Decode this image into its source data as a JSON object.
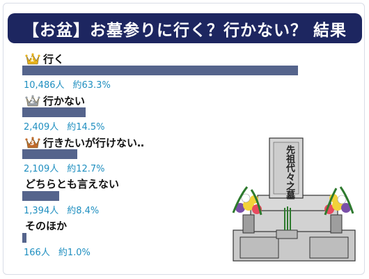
{
  "title": "【お盆】お墓参りに行く？行かない？ 結果",
  "colors": {
    "title_bg": "#1d2660",
    "bar": "#55648c",
    "value_text": "#1f8fc0",
    "gold": "#e7b21c",
    "silver": "#9aa0a6",
    "bronze": "#c06a2a"
  },
  "chart_data": {
    "type": "bar",
    "orientation": "horizontal",
    "title": "【お盆】お墓参りに行く？行かない？ 結果",
    "categories": [
      "行く",
      "行かない",
      "行きたいが行けない‥",
      "どちらとも言えない",
      "そのほか"
    ],
    "counts": [
      10486,
      2409,
      2109,
      1394,
      166
    ],
    "percents": [
      63.3,
      14.5,
      12.7,
      8.4,
      1.0
    ],
    "count_labels": [
      "10,486人",
      "2,409人",
      "2,109人",
      "1,394人",
      "166人"
    ],
    "percent_labels": [
      "約63.3%",
      "約14.5%",
      "約12.7%",
      "約8.4%",
      "約1.0%"
    ],
    "rank_badges": [
      "1",
      "2",
      "3",
      "",
      ""
    ],
    "rank_icons": [
      "gold-crown-icon",
      "silver-crown-icon",
      "bronze-crown-icon",
      "",
      ""
    ]
  },
  "illustration": {
    "icon": "grave-icon",
    "inscription": "先祖代々之墓"
  }
}
